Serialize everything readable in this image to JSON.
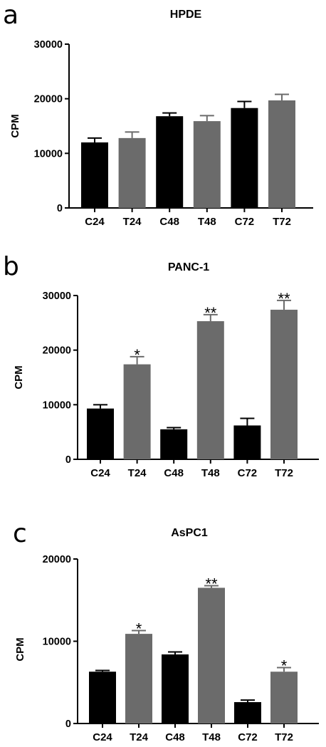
{
  "colors": {
    "control": "#000000",
    "treated": "#6b6b6b",
    "axis": "#000000"
  },
  "chart_data": [
    {
      "panel_label": "a",
      "type": "bar",
      "title": "HPDE",
      "ylabel": "CPM",
      "xlabel": "",
      "ylim": [
        0,
        30000
      ],
      "yticks": [
        "0",
        "10000",
        "20000",
        "30000"
      ],
      "categories": [
        "C24",
        "T24",
        "C48",
        "T48",
        "C72",
        "T72"
      ],
      "values": [
        12000,
        12800,
        16800,
        15900,
        18300,
        19700
      ],
      "errors": [
        800,
        1100,
        600,
        1000,
        1200,
        1100
      ],
      "significance": [
        "",
        "",
        "",
        "",
        "",
        ""
      ]
    },
    {
      "panel_label": "b",
      "type": "bar",
      "title": "PANC-1",
      "ylabel": "CPM",
      "xlabel": "",
      "ylim": [
        0,
        30000
      ],
      "yticks": [
        "0",
        "10000",
        "20000",
        "30000"
      ],
      "categories": [
        "C24",
        "T24",
        "C48",
        "T48",
        "C72",
        "T72"
      ],
      "values": [
        9300,
        17400,
        5500,
        25300,
        6200,
        27400
      ],
      "errors": [
        700,
        1400,
        300,
        1200,
        1300,
        1700
      ],
      "significance": [
        "",
        "*",
        "",
        "**",
        "",
        "**"
      ]
    },
    {
      "panel_label": "c",
      "type": "bar",
      "title": "AsPC1",
      "ylabel": "CPM",
      "xlabel": "",
      "ylim": [
        0,
        20000
      ],
      "yticks": [
        "0",
        "10000",
        "20000"
      ],
      "categories": [
        "C24",
        "T24",
        "C48",
        "T48",
        "C72",
        "T72"
      ],
      "values": [
        6300,
        10900,
        8400,
        16500,
        2600,
        6300
      ],
      "errors": [
        150,
        400,
        300,
        250,
        250,
        500
      ],
      "significance": [
        "",
        "*",
        "",
        "**",
        "",
        "*"
      ]
    }
  ]
}
